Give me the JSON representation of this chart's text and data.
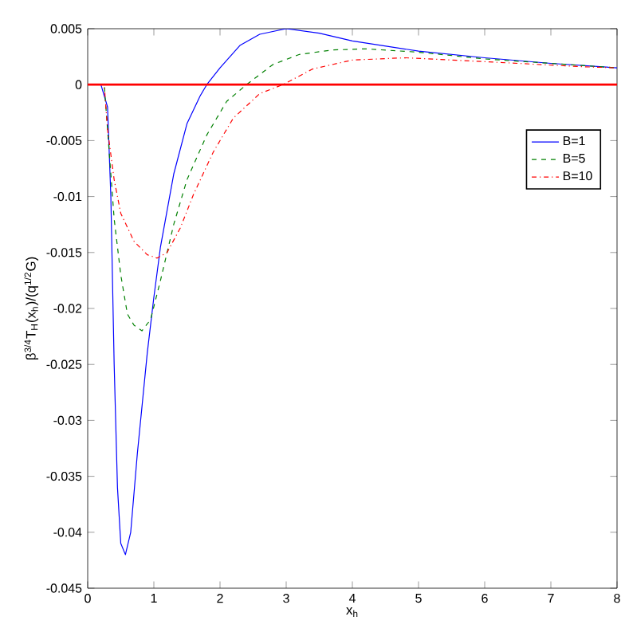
{
  "chart_data": {
    "type": "line",
    "xlabel": "x$_{h}$",
    "ylabel": "β$^{3/4}$T$_{H}$(x$_{h}$)/(q$^{1/2}$G)",
    "xlim": [
      0,
      8
    ],
    "ylim": [
      -0.045,
      0.005
    ],
    "xticks": [
      0,
      1,
      2,
      3,
      4,
      5,
      6,
      7,
      8
    ],
    "yticks": [
      -0.045,
      -0.04,
      -0.035,
      -0.03,
      -0.025,
      -0.02,
      -0.015,
      -0.01,
      -0.005,
      0,
      0.005
    ],
    "grid": false,
    "legend": "right",
    "ref_lines": [
      {
        "axis": "y",
        "value": 0,
        "color": "#ff0000"
      }
    ],
    "series": [
      {
        "name": "B=1",
        "color": "#0000ff",
        "line_style": "solid",
        "x": [
          0,
          0.2,
          0.3,
          0.35,
          0.4,
          0.45,
          0.5,
          0.57,
          0.65,
          0.75,
          0.9,
          1.0,
          1.1,
          1.3,
          1.5,
          1.7,
          1.8,
          2.0,
          2.3,
          2.6,
          3.0,
          3.5,
          4,
          5,
          6,
          7,
          8
        ],
        "values": [
          0,
          0,
          -0.002,
          -0.01,
          -0.025,
          -0.036,
          -0.041,
          -0.042,
          -0.04,
          -0.033,
          -0.024,
          -0.019,
          -0.0145,
          -0.008,
          -0.0035,
          -0.001,
          0,
          0.0015,
          0.0035,
          0.0045,
          0.005,
          0.0046,
          0.0039,
          0.003,
          0.0024,
          0.0019,
          0.0015
        ]
      },
      {
        "name": "B=5",
        "color": "#008000",
        "line_style": "dashed",
        "x": [
          0,
          0.25,
          0.3,
          0.4,
          0.5,
          0.6,
          0.7,
          0.82,
          0.95,
          1.1,
          1.3,
          1.5,
          1.8,
          2.1,
          2.4,
          2.8,
          3.2,
          3.7,
          4.2,
          5,
          6,
          7,
          8
        ],
        "values": [
          0,
          0,
          -0.004,
          -0.012,
          -0.017,
          -0.0205,
          -0.0215,
          -0.022,
          -0.021,
          -0.0175,
          -0.0125,
          -0.0085,
          -0.0045,
          -0.0015,
          0,
          0.0018,
          0.0027,
          0.0031,
          0.0032,
          0.0029,
          0.0023,
          0.0019,
          0.0015
        ]
      },
      {
        "name": "B=10",
        "color": "#ff0000",
        "line_style": "dashdotted",
        "x": [
          0,
          0.25,
          0.3,
          0.4,
          0.5,
          0.7,
          0.9,
          1.05,
          1.2,
          1.4,
          1.6,
          1.9,
          2.2,
          2.6,
          2.95,
          3.4,
          4,
          4.8,
          5.5,
          6.5,
          7.5,
          8
        ],
        "values": [
          0,
          0,
          -0.004,
          -0.0085,
          -0.0115,
          -0.014,
          -0.0152,
          -0.0155,
          -0.015,
          -0.0128,
          -0.0098,
          -0.006,
          -0.003,
          -0.0008,
          0,
          0.0014,
          0.0022,
          0.0024,
          0.0022,
          0.0019,
          0.0016,
          0.0015
        ]
      }
    ]
  }
}
